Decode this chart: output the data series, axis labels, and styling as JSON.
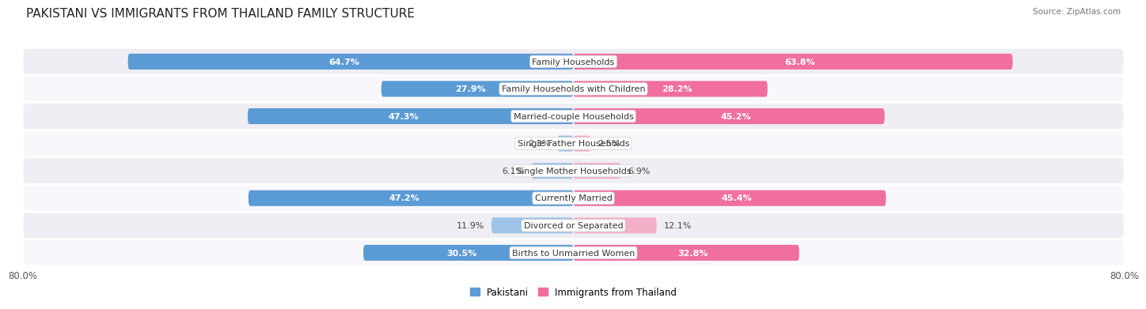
{
  "title": "PAKISTANI VS IMMIGRANTS FROM THAILAND FAMILY STRUCTURE",
  "source": "Source: ZipAtlas.com",
  "categories": [
    "Family Households",
    "Family Households with Children",
    "Married-couple Households",
    "Single Father Households",
    "Single Mother Households",
    "Currently Married",
    "Divorced or Separated",
    "Births to Unmarried Women"
  ],
  "pakistani_values": [
    64.7,
    27.9,
    47.3,
    2.3,
    6.1,
    47.2,
    11.9,
    30.5
  ],
  "thailand_values": [
    63.8,
    28.2,
    45.2,
    2.5,
    6.9,
    45.4,
    12.1,
    32.8
  ],
  "x_max": 80.0,
  "x_axis_label_left": "80.0%",
  "x_axis_label_right": "80.0%",
  "color_pakistani_dark": "#5b9bd5",
  "color_pakistani_light": "#9dc3e6",
  "color_thailand_dark": "#f06fa0",
  "color_thailand_light": "#f4afc8",
  "legend_pakistani": "Pakistani",
  "legend_thailand": "Immigrants from Thailand",
  "bar_height": 0.58,
  "row_bg_color_even": "#eeeef4",
  "row_bg_color_odd": "#f8f8fc",
  "title_fontsize": 11,
  "label_fontsize": 8,
  "value_fontsize": 8,
  "threshold_dark": 20,
  "value_inside_threshold": 15
}
